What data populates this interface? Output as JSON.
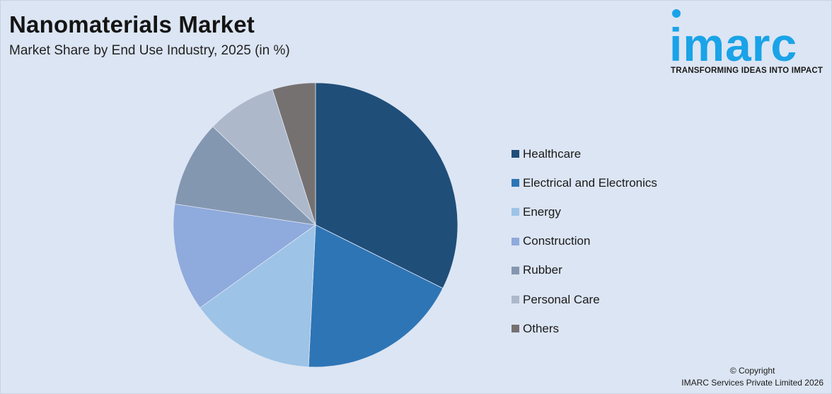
{
  "header": {
    "title": "Nanomaterials Market",
    "subtitle": "Market Share by End Use Industry, 2025 (in %)"
  },
  "logo": {
    "wordmark": "imarc",
    "tagline": "TRANSFORMING IDEAS INTO IMPACT",
    "color": "#1aa3e8"
  },
  "chart_data": {
    "type": "pie",
    "title": "Nanomaterials Market",
    "subtitle": "Market Share by End Use Industry, 2025 (in %)",
    "legend_position": "right",
    "start_angle_deg": 0,
    "direction": "clockwise",
    "slices": [
      {
        "label": "Healthcare",
        "value": 33.0,
        "color": "#1f4e79"
      },
      {
        "label": "Electrical and Electronics",
        "value": 18.8,
        "color": "#2e75b6"
      },
      {
        "label": "Energy",
        "value": 14.6,
        "color": "#9dc3e6"
      },
      {
        "label": "Construction",
        "value": 12.5,
        "color": "#8faadc"
      },
      {
        "label": "Rubber",
        "value": 10.0,
        "color": "#8497b0"
      },
      {
        "label": "Personal Care",
        "value": 8.1,
        "color": "#adb9ca"
      },
      {
        "label": "Others",
        "value": 5.0,
        "color": "#767171"
      }
    ]
  },
  "footer": {
    "copyright_line1": "© Copyright",
    "copyright_line2": "IMARC Services Private Limited 2026"
  }
}
